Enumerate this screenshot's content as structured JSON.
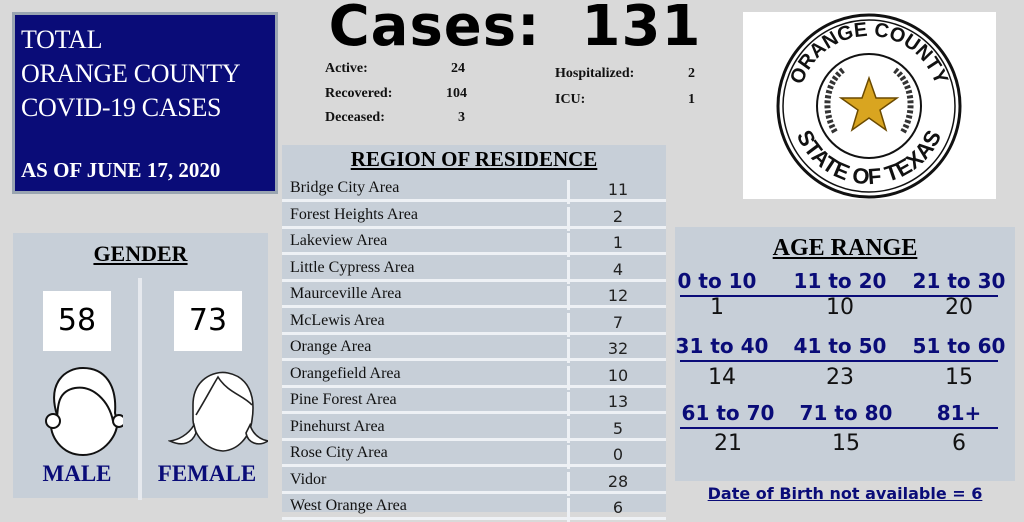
{
  "title_box": {
    "lines": [
      "TOTAL",
      "ORANGE COUNTY",
      "COVID-19 CASES"
    ],
    "date": "AS OF JUNE 17, 2020"
  },
  "cases": {
    "label": "Cases:",
    "total": "131"
  },
  "stats": {
    "left": [
      {
        "label": "Active:",
        "value": "24"
      },
      {
        "label": "Recovered:",
        "value": "104"
      },
      {
        "label": "Deceased:",
        "value": "3"
      }
    ],
    "right": [
      {
        "label": "Hospitalized:",
        "value": "2"
      },
      {
        "label": "ICU:",
        "value": "1"
      }
    ]
  },
  "region": {
    "title": "REGION OF RESIDENCE",
    "rows": [
      {
        "name": "Bridge City Area",
        "value": "11"
      },
      {
        "name": "Forest Heights Area",
        "value": "2"
      },
      {
        "name": "Lakeview Area",
        "value": "1"
      },
      {
        "name": "Little Cypress Area",
        "value": "4"
      },
      {
        "name": "Maurceville Area",
        "value": "12"
      },
      {
        "name": "McLewis Area",
        "value": "7"
      },
      {
        "name": "Orange Area",
        "value": "32"
      },
      {
        "name": "Orangefield Area",
        "value": "10"
      },
      {
        "name": "Pine Forest Area",
        "value": "13"
      },
      {
        "name": "Pinehurst Area",
        "value": "5"
      },
      {
        "name": "Rose City Area",
        "value": "0"
      },
      {
        "name": "Vidor",
        "value": "28"
      },
      {
        "name": "West Orange Area",
        "value": "6"
      }
    ]
  },
  "gender": {
    "title": "GENDER",
    "male": {
      "label": "MALE",
      "value": "58"
    },
    "female": {
      "label": "FEMALE",
      "value": "73"
    }
  },
  "logo": {
    "top_text": "ORANGE COUNTY",
    "bottom_text": "STATE OF TEXAS"
  },
  "age": {
    "title": "AGE RANGE",
    "groups": [
      {
        "range": "0 to 10",
        "value": "1"
      },
      {
        "range": "11 to 20",
        "value": "10"
      },
      {
        "range": "21 to 30",
        "value": "20"
      },
      {
        "range": "31 to 40",
        "value": "14"
      },
      {
        "range": "41 to 50",
        "value": "23"
      },
      {
        "range": "51 to 60",
        "value": "15"
      },
      {
        "range": "61 to 70",
        "value": "21"
      },
      {
        "range": "71 to 80",
        "value": "15"
      },
      {
        "range": "81+",
        "value": "6"
      }
    ],
    "footnote": "Date of Birth not available = 6"
  },
  "colors": {
    "navy": "#0a0c78",
    "panel": "#c7cfd8",
    "background": "#d9d9d9"
  }
}
